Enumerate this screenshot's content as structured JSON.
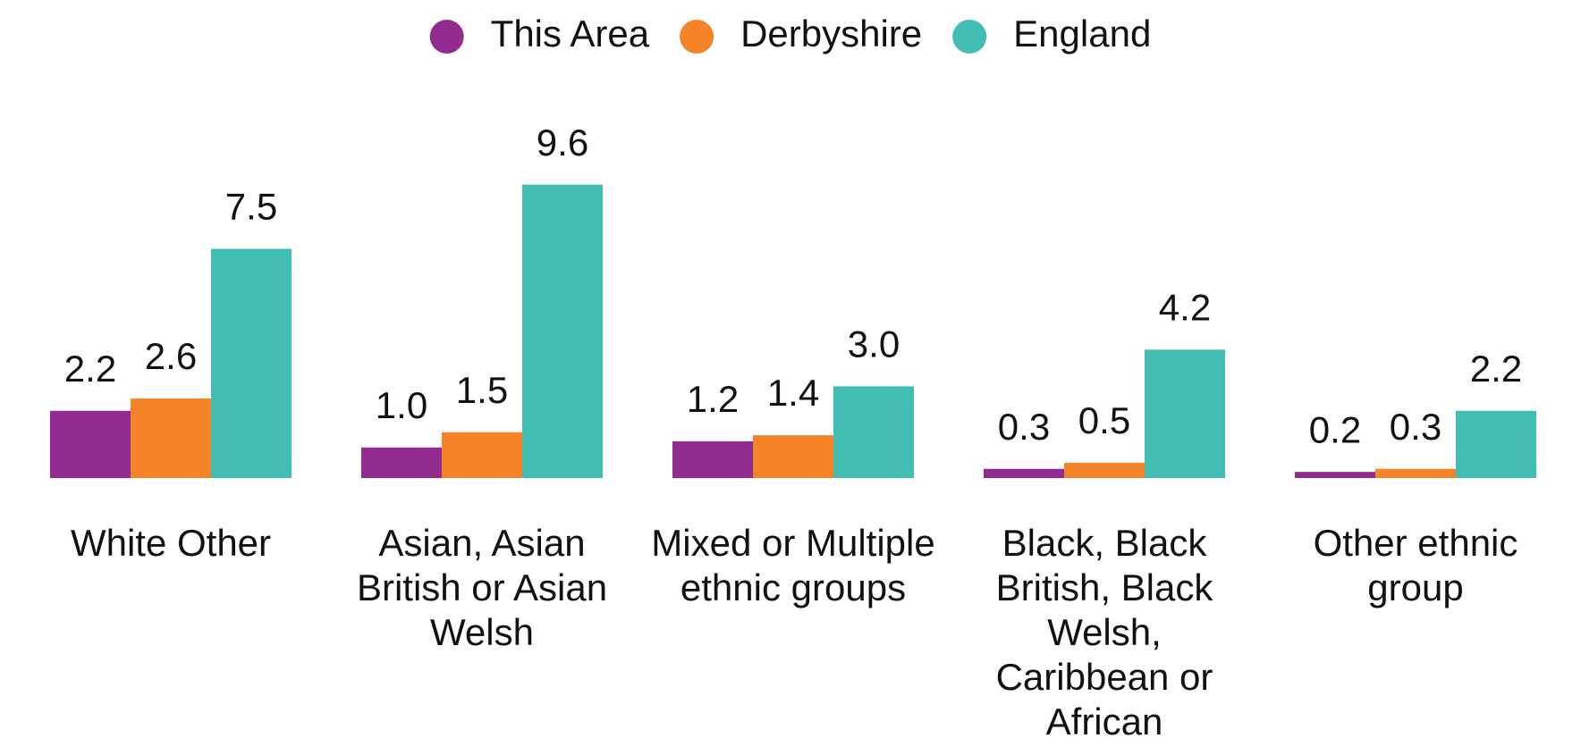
{
  "chart_data": {
    "type": "bar",
    "categories": [
      "White Other",
      "Asian, Asian British or Asian Welsh",
      "Mixed or Multiple ethnic groups",
      "Black, Black British, Black Welsh, Caribbean or African",
      "Other ethnic group"
    ],
    "series": [
      {
        "name": "This Area",
        "color": "#922b8f",
        "values": [
          2.2,
          1.0,
          1.2,
          0.3,
          0.2
        ],
        "value_labels": [
          "2.2",
          "1.0",
          "1.2",
          "0.3",
          "0.2"
        ]
      },
      {
        "name": "Derbyshire",
        "color": "#f5832a",
        "values": [
          2.6,
          1.5,
          1.4,
          0.5,
          0.3
        ],
        "value_labels": [
          "2.6",
          "1.5",
          "1.4",
          "0.5",
          "0.3"
        ]
      },
      {
        "name": "England",
        "color": "#42bdb3",
        "values": [
          7.5,
          9.6,
          3.0,
          4.2,
          2.2
        ],
        "value_labels": [
          "7.5",
          "9.6",
          "3.0",
          "4.2",
          "2.2"
        ]
      }
    ],
    "legend": "top"
  }
}
